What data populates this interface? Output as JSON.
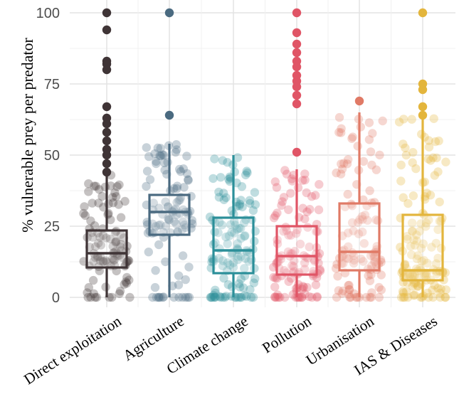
{
  "chart_data": {
    "type": "box",
    "title": "",
    "xlabel": "",
    "ylabel": "% vulnerable prey per predator",
    "ylim": [
      0,
      100
    ],
    "yticks": [
      0,
      25,
      50,
      75,
      100
    ],
    "grid": true,
    "legend": "none",
    "categories": [
      "Direct exploitation",
      "Agriculture",
      "Climate change",
      "Pollution",
      "Urbanisation",
      "IAS & Diseases"
    ],
    "series": [
      {
        "category": "Direct exploitation",
        "color": "#3f3436",
        "stats": {
          "min": 0,
          "q1": 10.5,
          "median": 15.5,
          "q3": 23.5,
          "max": 43
        },
        "outliers": [
          44,
          47,
          50,
          52,
          55,
          58,
          61,
          63,
          67,
          80,
          82,
          83,
          94,
          100
        ],
        "jitter_n": 110
      },
      {
        "category": "Agriculture",
        "color": "#4a6a80",
        "stats": {
          "min": 0,
          "q1": 22,
          "median": 30,
          "q3": 36,
          "max": 54
        },
        "outliers": [
          64,
          100
        ],
        "jitter_n": 110
      },
      {
        "category": "Climate change",
        "color": "#2b8f99",
        "stats": {
          "min": 0,
          "q1": 8.5,
          "median": 16.5,
          "q3": 28,
          "max": 50
        },
        "outliers": [],
        "jitter_n": 130
      },
      {
        "category": "Pollution",
        "color": "#e05566",
        "stats": {
          "min": 0,
          "q1": 8,
          "median": 14.5,
          "q3": 25,
          "max": 45
        },
        "outliers": [
          51,
          68,
          71,
          74,
          76,
          78,
          81,
          83,
          86,
          89,
          93,
          100
        ],
        "jitter_n": 120
      },
      {
        "category": "Urbanisation",
        "color": "#e07a66",
        "stats": {
          "min": 0,
          "q1": 9.5,
          "median": 16,
          "q3": 33,
          "max": 65
        },
        "outliers": [
          69
        ],
        "jitter_n": 115
      },
      {
        "category": "IAS & Diseases",
        "color": "#e3b53c",
        "stats": {
          "min": 0,
          "q1": 6,
          "median": 9.5,
          "q3": 29,
          "max": 63
        },
        "outliers": [
          64,
          67,
          73,
          75,
          100
        ],
        "jitter_n": 140
      }
    ]
  }
}
